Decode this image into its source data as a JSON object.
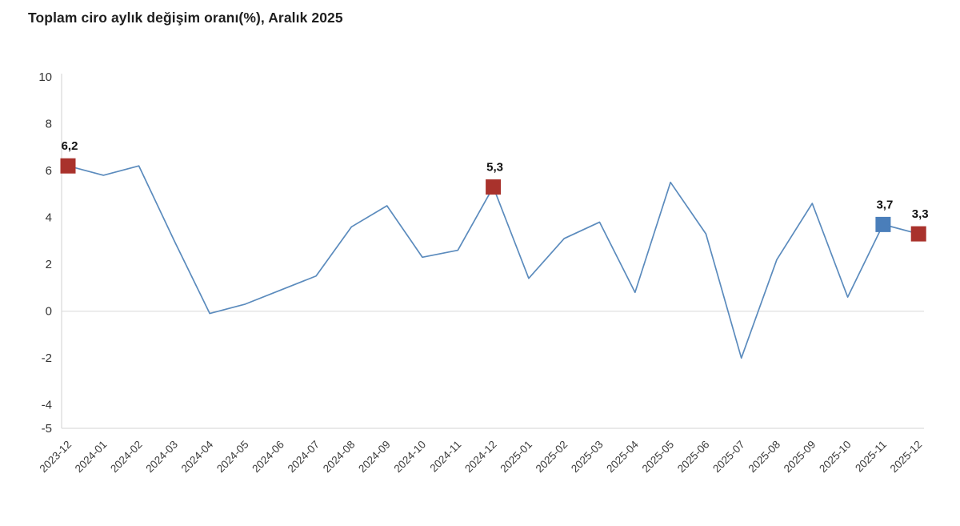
{
  "chart_data": {
    "type": "line",
    "title": "Toplam ciro aylık değişim oranı(%), Aralık 2025",
    "categories": [
      "2023-12",
      "2024-01",
      "2024-02",
      "2024-03",
      "2024-04",
      "2024-05",
      "2024-06",
      "2024-07",
      "2024-08",
      "2024-09",
      "2024-10",
      "2024-11",
      "2024-12",
      "2025-01",
      "2025-02",
      "2025-03",
      "2025-04",
      "2025-05",
      "2025-06",
      "2025-07",
      "2025-08",
      "2025-09",
      "2025-10",
      "2025-11",
      "2025-12"
    ],
    "values": [
      6.2,
      5.8,
      6.2,
      3.0,
      -0.1,
      0.3,
      0.9,
      1.5,
      3.6,
      4.5,
      2.3,
      2.6,
      5.3,
      1.4,
      3.1,
      3.8,
      0.8,
      5.5,
      3.3,
      -2.0,
      2.2,
      4.6,
      0.6,
      3.7,
      3.3
    ],
    "xlabel": "",
    "ylabel": "",
    "ylim": [
      -5,
      10
    ],
    "yticks": [
      10,
      8,
      6,
      4,
      2,
      0,
      -2,
      -4,
      -5
    ],
    "grid": "zero-line-only",
    "legend": "none",
    "line_color": "#5b8bbd",
    "axis_color": "#dcdcdc",
    "zero_line_color": "#e3e3e3",
    "annotated_points": [
      {
        "category": "2023-12",
        "index": 0,
        "label": "6,2",
        "color": "#a9322c"
      },
      {
        "category": "2024-12",
        "index": 12,
        "label": "5,3",
        "color": "#a9322c"
      },
      {
        "category": "2025-11",
        "index": 23,
        "label": "3,7",
        "color": "#4a7eba"
      },
      {
        "category": "2025-12",
        "index": 24,
        "label": "3,3",
        "color": "#a9322c"
      }
    ]
  }
}
